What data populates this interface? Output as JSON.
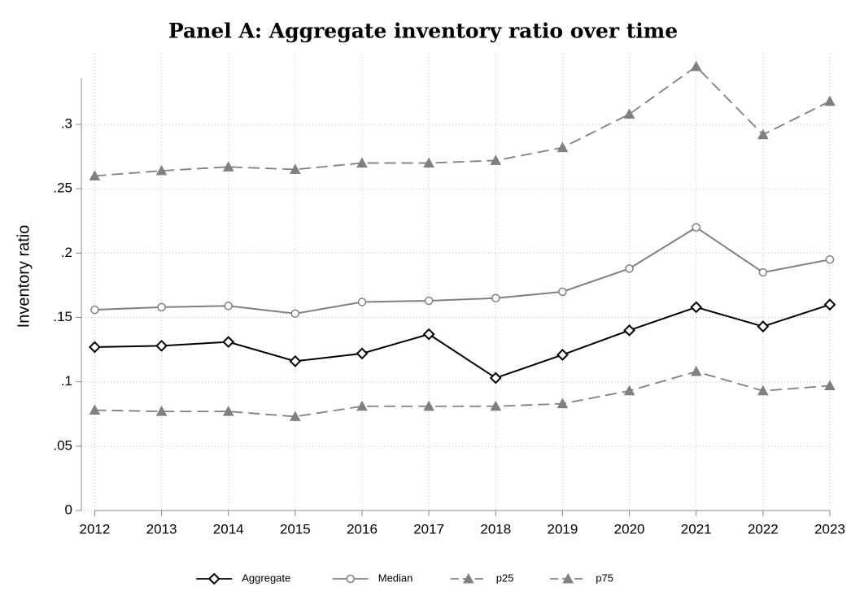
{
  "chart_data": {
    "type": "line",
    "title": "Panel A: Aggregate inventory ratio over time",
    "ylabel": "Inventory ratio",
    "x": [
      2012,
      2013,
      2014,
      2015,
      2016,
      2017,
      2018,
      2019,
      2020,
      2021,
      2022,
      2023
    ],
    "series": [
      {
        "name": "Aggregate",
        "color": "#000000",
        "dash": false,
        "marker": "diamond",
        "values": [
          0.127,
          0.128,
          0.131,
          0.116,
          0.122,
          0.137,
          0.103,
          0.121,
          0.14,
          0.158,
          0.143,
          0.16
        ]
      },
      {
        "name": "Median",
        "color": "#808080",
        "dash": false,
        "marker": "circle",
        "values": [
          0.156,
          0.158,
          0.159,
          0.153,
          0.162,
          0.163,
          0.165,
          0.17,
          0.188,
          0.22,
          0.185,
          0.195
        ]
      },
      {
        "name": "p25",
        "color": "#808080",
        "dash": true,
        "marker": "triangle",
        "values": [
          0.078,
          0.077,
          0.077,
          0.073,
          0.081,
          0.081,
          0.081,
          0.083,
          0.093,
          0.108,
          0.093,
          0.097
        ]
      },
      {
        "name": "p75",
        "color": "#808080",
        "dash": true,
        "marker": "triangle",
        "values": [
          0.26,
          0.264,
          0.267,
          0.265,
          0.27,
          0.27,
          0.272,
          0.282,
          0.308,
          0.345,
          0.292,
          0.318
        ]
      }
    ],
    "xlim": [
      2011.8,
      2023
    ],
    "xticks": [
      2012,
      2013,
      2014,
      2015,
      2016,
      2017,
      2018,
      2019,
      2020,
      2021,
      2022,
      2023
    ],
    "ylim": [
      0,
      0.355
    ],
    "yticks": [
      0,
      {
        "value": 0.05,
        "label": ".05"
      },
      {
        "value": 0.1,
        "label": ".1"
      },
      {
        "value": 0.15,
        "label": ".15"
      },
      {
        "value": 0.2,
        "label": ".2"
      },
      {
        "value": 0.25,
        "label": ".25"
      },
      {
        "value": 0.3,
        "label": ".3"
      }
    ],
    "grid": true,
    "legend": "bottom"
  }
}
